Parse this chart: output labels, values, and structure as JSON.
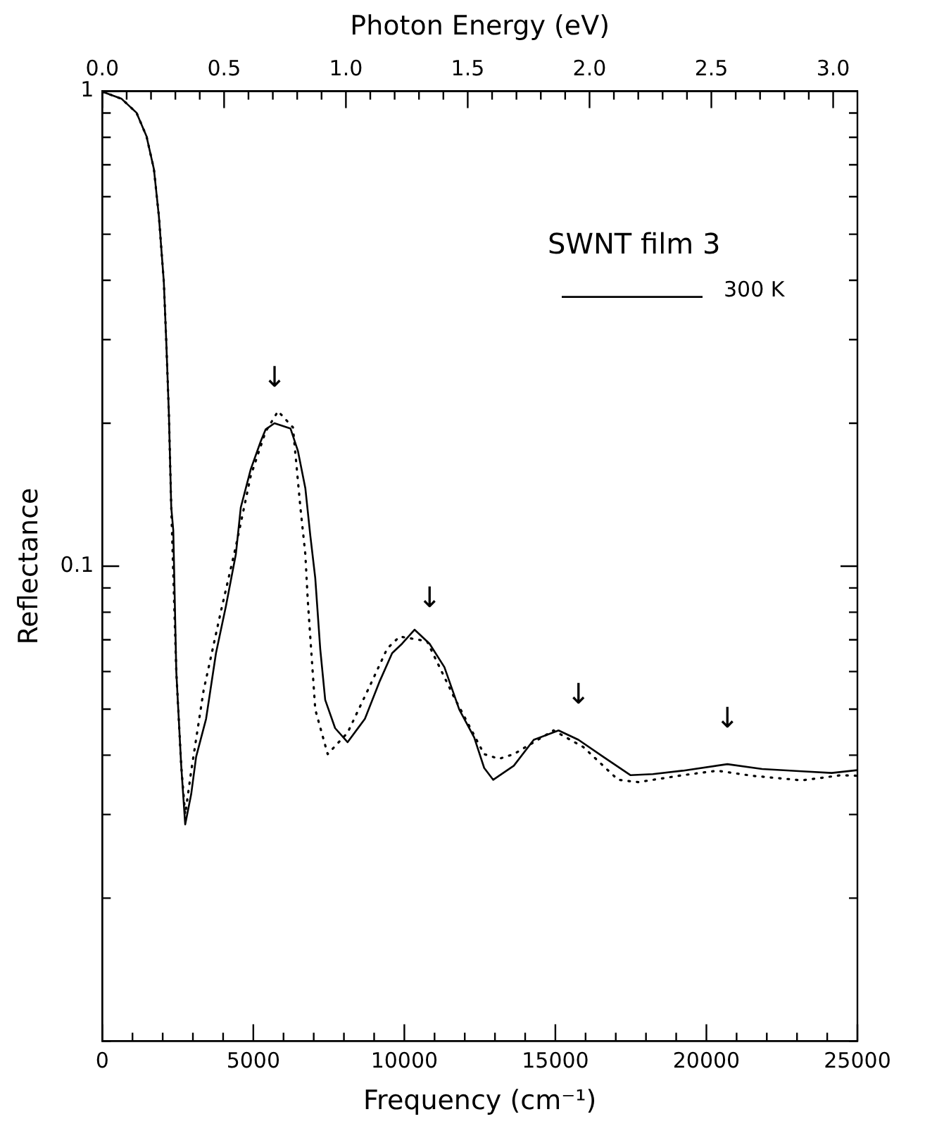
{
  "chart_data": {
    "type": "line",
    "xlabel": "Frequency (cm⁻¹)",
    "ylabel": "Reflectance",
    "x2label": "Photon Energy (eV)",
    "legend_title": "SWNT film 3",
    "legend": "top right",
    "marker": "none",
    "log": "y",
    "grid": false,
    "xlim": [
      0,
      25000
    ],
    "ylim": [
      0.01,
      1
    ],
    "x2lim": [
      0,
      3.0996
    ],
    "xticks": [
      0,
      {
        "value": 1000,
        "label": null
      },
      {
        "value": 2000,
        "label": null
      },
      {
        "value": 3000,
        "label": null
      },
      {
        "value": 4000,
        "label": null
      },
      5000,
      {
        "value": 6000,
        "label": null
      },
      {
        "value": 7000,
        "label": null
      },
      {
        "value": 8000,
        "label": null
      },
      {
        "value": 9000,
        "label": null
      },
      10000,
      {
        "value": 11000,
        "label": null
      },
      {
        "value": 12000,
        "label": null
      },
      {
        "value": 13000,
        "label": null
      },
      {
        "value": 14000,
        "label": null
      },
      15000,
      {
        "value": 16000,
        "label": null
      },
      {
        "value": 17000,
        "label": null
      },
      {
        "value": 18000,
        "label": null
      },
      {
        "value": 19000,
        "label": null
      },
      20000,
      {
        "value": 21000,
        "label": null
      },
      {
        "value": 22000,
        "label": null
      },
      {
        "value": 23000,
        "label": null
      },
      {
        "value": 24000,
        "label": null
      },
      25000
    ],
    "x2ticks": [
      {
        "value": 0,
        "label": "0.0"
      },
      {
        "value": 0.1,
        "label": null
      },
      {
        "value": 0.2,
        "label": null
      },
      {
        "value": 0.3,
        "label": null
      },
      {
        "value": 0.4,
        "label": null
      },
      {
        "value": 0.5,
        "label": "0.5"
      },
      {
        "value": 0.6,
        "label": null
      },
      {
        "value": 0.7,
        "label": null
      },
      {
        "value": 0.8,
        "label": null
      },
      {
        "value": 0.9,
        "label": null
      },
      {
        "value": 1,
        "label": "1.0"
      },
      {
        "value": 1.1,
        "label": null
      },
      {
        "value": 1.2,
        "label": null
      },
      {
        "value": 1.3,
        "label": null
      },
      {
        "value": 1.4,
        "label": null
      },
      {
        "value": 1.5,
        "label": "1.5"
      },
      {
        "value": 1.6,
        "label": null
      },
      {
        "value": 1.7,
        "label": null
      },
      {
        "value": 1.8,
        "label": null
      },
      {
        "value": 1.9,
        "label": null
      },
      {
        "value": 2,
        "label": "2.0"
      },
      {
        "value": 2.1,
        "label": null
      },
      {
        "value": 2.2,
        "label": null
      },
      {
        "value": 2.3,
        "label": null
      },
      {
        "value": 2.4,
        "label": null
      },
      {
        "value": 2.5,
        "label": "2.5"
      },
      {
        "value": 2.6,
        "label": null
      },
      {
        "value": 2.7,
        "label": null
      },
      {
        "value": 2.8,
        "label": null
      },
      {
        "value": 2.9,
        "label": null
      },
      {
        "value": 3,
        "label": "3.0"
      }
    ],
    "yticks": [
      {
        "value": 0.01,
        "label": null
      },
      {
        "value": 0.02,
        "label": null
      },
      {
        "value": 0.03,
        "label": null
      },
      {
        "value": 0.04,
        "label": null
      },
      {
        "value": 0.05,
        "label": null
      },
      {
        "value": 0.06,
        "label": null
      },
      {
        "value": 0.07,
        "label": null
      },
      {
        "value": 0.08,
        "label": null
      },
      {
        "value": 0.09,
        "label": null
      },
      0.1,
      {
        "value": 0.2,
        "label": null
      },
      {
        "value": 0.3,
        "label": null
      },
      {
        "value": 0.4,
        "label": null
      },
      {
        "value": 0.5,
        "label": null
      },
      {
        "value": 0.6,
        "label": null
      },
      {
        "value": 0.7,
        "label": null
      },
      {
        "value": 0.8,
        "label": null
      },
      {
        "value": 0.9,
        "label": null
      },
      1
    ],
    "series": [
      {
        "name": "300 K",
        "color": "#000000",
        "line_style": "solid",
        "x": [
          0,
          640,
          1134,
          1464,
          1710,
          1874,
          2037,
          2120,
          2204,
          2283,
          2350,
          2450,
          2613,
          2745,
          2943,
          3107,
          3436,
          3764,
          4093,
          4422,
          4586,
          4915,
          5243,
          5406,
          5700,
          6230,
          6475,
          6722,
          6887,
          7050,
          7215,
          7380,
          7708,
          8120,
          8694,
          9187,
          9596,
          9927,
          10340,
          10833,
          11326,
          11819,
          12312,
          12643,
          12940,
          13624,
          14285,
          15105,
          15763,
          16583,
          17490,
          18230,
          19216,
          20695,
          21844,
          23160,
          24148,
          25000
        ],
        "values": [
          0.998,
          0.964,
          0.901,
          0.804,
          0.685,
          0.545,
          0.397,
          0.295,
          0.21,
          0.133,
          0.119,
          0.06,
          0.038,
          0.0286,
          0.0331,
          0.0397,
          0.0477,
          0.0656,
          0.0824,
          0.106,
          0.133,
          0.16,
          0.183,
          0.194,
          0.2,
          0.195,
          0.175,
          0.146,
          0.116,
          0.0945,
          0.067,
          0.0523,
          0.0456,
          0.0426,
          0.0477,
          0.0573,
          0.0656,
          0.0687,
          0.0735,
          0.0687,
          0.0613,
          0.0499,
          0.0436,
          0.0376,
          0.0355,
          0.038,
          0.0431,
          0.0451,
          0.0431,
          0.0397,
          0.0363,
          0.0365,
          0.0371,
          0.0383,
          0.0374,
          0.037,
          0.0367,
          0.0372
        ]
      },
      {
        "color": "#000000",
        "line_style": "dotted",
        "x": [
          0,
          640,
          1134,
          1464,
          1710,
          1874,
          2037,
          2120,
          2204,
          2283,
          2450,
          2613,
          2745,
          2943,
          3353,
          3930,
          4422,
          4915,
          5406,
          5818,
          6312,
          6558,
          6722,
          6805,
          7051,
          7462,
          8120,
          8860,
          9434,
          9845,
          10750,
          11653,
          12640,
          13136,
          13624,
          14941,
          15927,
          17076,
          17736,
          19216,
          20365,
          21514,
          23160,
          24470,
          25000
        ],
        "values": [
          0.998,
          0.964,
          0.901,
          0.804,
          0.685,
          0.545,
          0.397,
          0.295,
          0.21,
          0.133,
          0.06,
          0.038,
          0.03,
          0.037,
          0.0547,
          0.0805,
          0.11,
          0.155,
          0.192,
          0.212,
          0.196,
          0.133,
          0.106,
          0.0843,
          0.0499,
          0.0402,
          0.0446,
          0.056,
          0.0671,
          0.0711,
          0.0695,
          0.0529,
          0.0402,
          0.0393,
          0.0402,
          0.0451,
          0.0416,
          0.0355,
          0.0351,
          0.0363,
          0.0371,
          0.0362,
          0.0354,
          0.0363,
          0.0362
        ]
      }
    ],
    "annotations": [
      {
        "text": "↓",
        "x": 5700,
        "y": 0.2
      },
      {
        "text": "↓",
        "x": 10833,
        "y": 0.0687
      },
      {
        "text": "↓",
        "x": 15763,
        "y": 0.0431
      },
      {
        "text": "↓",
        "x": 20695,
        "y": 0.0383
      }
    ]
  }
}
